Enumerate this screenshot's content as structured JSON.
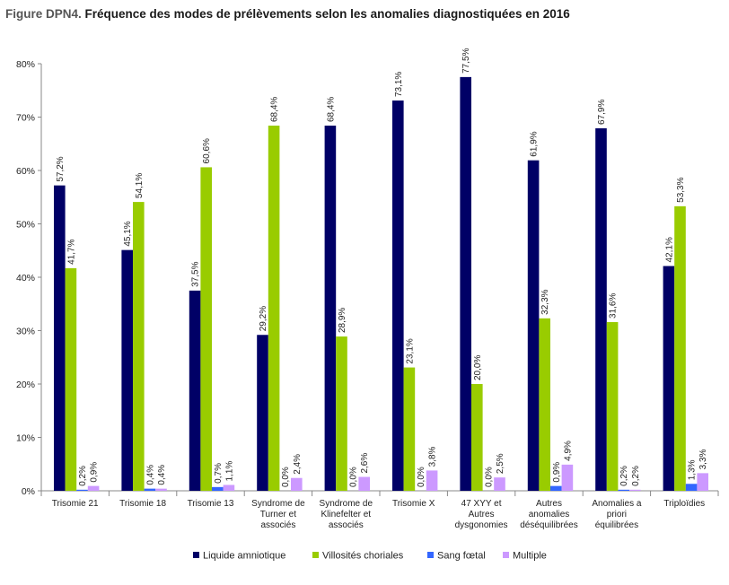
{
  "title_prefix": "Figure DPN4.",
  "title_main": "Fréquence des modes de prélèvements selon les anomalies diagnostiquées en 2016",
  "chart_data": {
    "type": "bar",
    "title": "Figure DPN4. Fréquence des modes de prélèvements selon les anomalies diagnostiquées en 2016",
    "xlabel": "",
    "ylabel": "",
    "ylim": [
      0,
      80
    ],
    "yticks": [
      "0%",
      "10%",
      "20%",
      "30%",
      "40%",
      "50%",
      "60%",
      "70%",
      "80%"
    ],
    "grid": false,
    "legend_position": "bottom",
    "categories": [
      [
        "Trisomie 21"
      ],
      [
        "Trisomie 18"
      ],
      [
        "Trisomie 13"
      ],
      [
        "Syndrome de",
        "Turner et",
        "associés"
      ],
      [
        "Syndrome de",
        "Klinefelter et",
        "associés"
      ],
      [
        "Trisomie X"
      ],
      [
        "47 XYY et",
        "Autres",
        "dysgonomies"
      ],
      [
        "Autres",
        "anomalies",
        "déséquilibrées"
      ],
      [
        "Anomalies a",
        "priori",
        "équilibrées"
      ],
      [
        "Triploïdies"
      ]
    ],
    "series": [
      {
        "name": "Liquide amniotique",
        "color": "#000066",
        "values": [
          57.2,
          45.1,
          37.5,
          29.2,
          68.4,
          73.1,
          77.5,
          61.9,
          67.9,
          42.1
        ],
        "labels": [
          "57,2%",
          "45,1%",
          "37,5%",
          "29,2%",
          "68,4%",
          "73,1%",
          "77,5%",
          "61,9%",
          "67,9%",
          "42,1%"
        ]
      },
      {
        "name": "Villosités choriales",
        "color": "#99cc00",
        "values": [
          41.7,
          54.1,
          60.6,
          68.4,
          28.9,
          23.1,
          20.0,
          32.3,
          31.6,
          53.3
        ],
        "labels": [
          "41,7%",
          "54,1%",
          "60,6%",
          "68,4%",
          "28,9%",
          "23,1%",
          "20,0%",
          "32,3%",
          "31,6%",
          "53,3%"
        ]
      },
      {
        "name": "Sang fœtal",
        "color": "#3366ff",
        "values": [
          0.2,
          0.4,
          0.7,
          0.0,
          0.0,
          0.0,
          0.0,
          0.9,
          0.2,
          1.3
        ],
        "labels": [
          "0,2%",
          "0,4%",
          "0,7%",
          "0,0%",
          "0,0%",
          "0,0%",
          "0,0%",
          "0,9%",
          "0,2%",
          "1,3%"
        ]
      },
      {
        "name": "Multiple",
        "color": "#cc99ff",
        "values": [
          0.9,
          0.4,
          1.1,
          2.4,
          2.6,
          3.8,
          2.5,
          4.9,
          0.2,
          3.3
        ],
        "labels": [
          "0,9%",
          "0,4%",
          "1,1%",
          "2,4%",
          "2,6%",
          "3,8%",
          "2,5%",
          "4,9%",
          "0,2%",
          "3,3%"
        ]
      }
    ]
  }
}
